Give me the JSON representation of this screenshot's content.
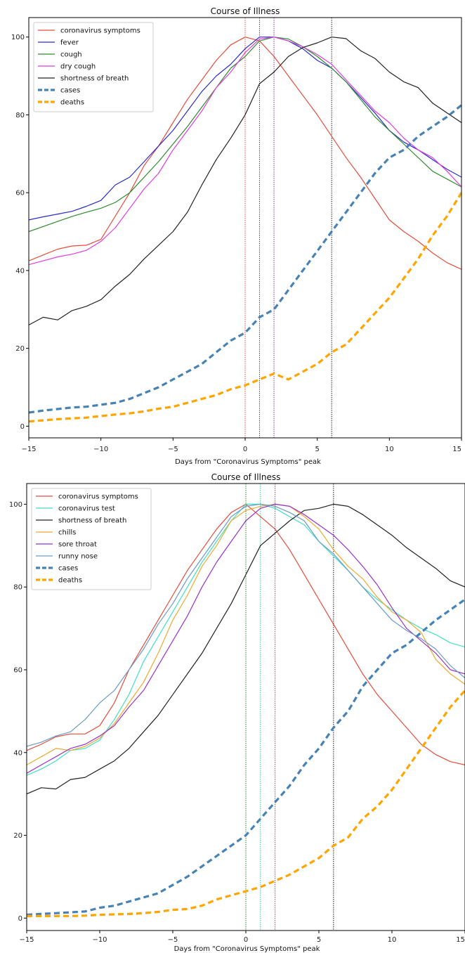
{
  "chart_data": [
    {
      "type": "line",
      "title": "Course of Illness",
      "xlabel": "Days from \"Coronavirus Symptoms\" peak",
      "ylabel": "",
      "xlim": [
        -15,
        15
      ],
      "ylim": [
        -3,
        105
      ],
      "xticks": [
        -15,
        -10,
        -5,
        0,
        5,
        10,
        15
      ],
      "xtick_labels": [
        "−15",
        "−10",
        "−5",
        "0",
        "5",
        "10",
        "15"
      ],
      "yticks": [
        0,
        20,
        40,
        60,
        80,
        100
      ],
      "ytick_labels": [
        "0",
        "20",
        "40",
        "60",
        "80",
        "100"
      ],
      "grid": false,
      "legend_position": "top-left",
      "x": [
        -15,
        -14,
        -13,
        -12,
        -11,
        -10,
        -9,
        -8,
        -7,
        -6,
        -5,
        -4,
        -3,
        -2,
        -1,
        0,
        1,
        2,
        3,
        4,
        5,
        6,
        7,
        8,
        9,
        10,
        11,
        12,
        13,
        14,
        15
      ],
      "vlines": [
        {
          "x": 0,
          "color": "#e74c3c"
        },
        {
          "x": 1,
          "color": "#3b3bd6"
        },
        {
          "x": 2,
          "color": "#8a3aa8"
        },
        {
          "x": 6,
          "color": "#222222"
        }
      ],
      "series": [
        {
          "name": "coronavirus symptoms",
          "color": "#e74c3c",
          "width": 1.2,
          "dash": "",
          "values": [
            42.5,
            44,
            45.5,
            46.3,
            46.5,
            48,
            54,
            60,
            67,
            72,
            78,
            84,
            89,
            94,
            98,
            100,
            99,
            95,
            90,
            85,
            80,
            74.5,
            69,
            64,
            58.5,
            53,
            50,
            47.5,
            44.5,
            42,
            40.3
          ]
        },
        {
          "name": "fever",
          "color": "#2b2bcc",
          "width": 1.2,
          "dash": "",
          "values": [
            53,
            53.8,
            54.5,
            55.2,
            56.5,
            58,
            62,
            64,
            68,
            72,
            76,
            81,
            86,
            90,
            93,
            97,
            100,
            100,
            99,
            97,
            94,
            92,
            88.5,
            84.5,
            80.5,
            76,
            73,
            71,
            68.5,
            66,
            64
          ]
        },
        {
          "name": "cough",
          "color": "#2e8b2e",
          "width": 1.2,
          "dash": "",
          "values": [
            50,
            51.3,
            52.6,
            53.9,
            55,
            56,
            57.5,
            60,
            64,
            68,
            72.5,
            77,
            82,
            87,
            92,
            95,
            99,
            100,
            99.5,
            97.5,
            95,
            92,
            88.5,
            84,
            79.5,
            76,
            72.5,
            69,
            65.5,
            63.5,
            61.5
          ]
        },
        {
          "name": "dry cough",
          "color": "#e23be0",
          "width": 1.2,
          "dash": "",
          "values": [
            41.5,
            42.5,
            43.5,
            44.2,
            45.2,
            47.5,
            51,
            56,
            61,
            65,
            71,
            76,
            81,
            87,
            91,
            96,
            99.5,
            100,
            99,
            97.5,
            95.5,
            93,
            89,
            85,
            81,
            78,
            74,
            71,
            69,
            65.5,
            61.5
          ]
        },
        {
          "name": "shortness of breath",
          "color": "#222222",
          "width": 1.2,
          "dash": "",
          "values": [
            26,
            28,
            27.3,
            29.7,
            30.8,
            32.5,
            36,
            39,
            43,
            46.5,
            50,
            55,
            62,
            68.5,
            74,
            80,
            88,
            91,
            95,
            97.3,
            98.5,
            100,
            99.6,
            96.5,
            94.5,
            91,
            88.5,
            87,
            83,
            80.5,
            78
          ]
        },
        {
          "name": "cases",
          "color": "#4682b4",
          "width": 3.2,
          "dash": "8,5",
          "values": [
            3.5,
            4,
            4.4,
            4.8,
            5,
            5.5,
            6,
            7,
            8.5,
            10,
            12,
            14,
            16,
            19,
            22,
            24,
            28,
            30,
            35,
            40,
            45,
            50,
            55,
            60,
            65,
            69,
            71,
            74.5,
            77,
            79.5,
            82.5
          ]
        },
        {
          "name": "deaths",
          "color": "#ffa500",
          "width": 3.2,
          "dash": "8,5",
          "values": [
            1.2,
            1.5,
            1.8,
            2,
            2.2,
            2.6,
            3,
            3.3,
            3.8,
            4.5,
            5,
            6,
            7,
            8,
            9.5,
            10.5,
            12,
            13.5,
            12,
            14,
            16,
            19,
            21,
            25,
            29,
            33,
            38,
            43,
            49,
            54,
            60
          ]
        }
      ]
    },
    {
      "type": "line",
      "title": "Course of Illness",
      "xlabel": "Days from \"Coronavirus Symptoms\" peak",
      "ylabel": "",
      "xlim": [
        -15,
        15
      ],
      "ylim": [
        -3,
        105
      ],
      "xticks": [
        -15,
        -10,
        -5,
        0,
        5,
        10,
        15
      ],
      "xtick_labels": [
        "−15",
        "−10",
        "−5",
        "0",
        "5",
        "10",
        "15"
      ],
      "yticks": [
        0,
        20,
        40,
        60,
        80,
        100
      ],
      "ytick_labels": [
        "0",
        "20",
        "40",
        "60",
        "80",
        "100"
      ],
      "grid": false,
      "legend_position": "top-left",
      "x": [
        -15,
        -14,
        -13,
        -12,
        -11,
        -10,
        -9,
        -8,
        -7,
        -6,
        -5,
        -4,
        -3,
        -2,
        -1,
        0,
        1,
        2,
        3,
        4,
        5,
        6,
        7,
        8,
        9,
        10,
        11,
        12,
        13,
        14,
        15
      ],
      "vlines": [
        {
          "x": 0,
          "color": "#2e8b2e"
        },
        {
          "x": 1,
          "color": "#40c4a8"
        },
        {
          "x": 2,
          "color": "#8a3aa8"
        },
        {
          "x": 2,
          "color": "#e74c3c"
        },
        {
          "x": 6,
          "color": "#222222"
        }
      ],
      "series": [
        {
          "name": "coronavirus symptoms",
          "color": "#e74c3c",
          "width": 1.2,
          "dash": "",
          "values": [
            40.5,
            42,
            43.8,
            44.5,
            44.5,
            46.5,
            52,
            60,
            66,
            72,
            78,
            84,
            89,
            94,
            98,
            100,
            97,
            94,
            89,
            83,
            77,
            71,
            65,
            59,
            54,
            50,
            46,
            42,
            39.5,
            37.8,
            37
          ]
        },
        {
          "name": "coronavirus test",
          "color": "#40e0c8",
          "width": 1.2,
          "dash": "",
          "values": [
            34.5,
            36,
            38,
            40.5,
            41,
            43,
            48,
            54,
            62,
            68,
            74,
            80,
            86,
            91,
            96,
            100,
            100,
            99,
            97,
            95,
            91,
            87.5,
            84,
            80,
            77,
            74.5,
            72,
            70,
            68.5,
            66.5,
            65.5
          ]
        },
        {
          "name": "shortness of breath",
          "color": "#222222",
          "width": 1.2,
          "dash": "",
          "values": [
            30,
            31.5,
            31.2,
            33.5,
            34,
            36,
            38,
            41,
            45,
            49,
            54,
            59,
            64,
            70,
            76,
            83,
            90,
            93,
            96,
            98.5,
            99,
            100,
            99.5,
            97.5,
            95,
            92.5,
            89.5,
            87,
            84.5,
            81.5,
            80
          ]
        },
        {
          "name": "chills",
          "color": "#f0a830",
          "width": 1.2,
          "dash": "",
          "values": [
            37,
            39,
            41,
            40.5,
            41.5,
            43.5,
            47,
            52,
            57,
            64,
            72,
            78,
            85,
            90,
            96,
            98.5,
            99.5,
            100,
            99.5,
            97,
            94,
            89,
            85,
            82,
            77.5,
            74,
            72,
            69,
            62.5,
            59,
            56.5
          ]
        },
        {
          "name": "sore throat",
          "color": "#9932cc",
          "width": 1.2,
          "dash": "",
          "values": [
            35,
            37,
            39,
            41,
            42,
            44,
            46.5,
            51,
            55,
            61,
            67,
            73,
            80,
            86,
            91,
            96,
            99,
            100,
            99.5,
            97.5,
            95,
            92.5,
            89,
            85,
            80.5,
            75,
            70,
            67,
            64,
            60,
            59
          ]
        },
        {
          "name": "runny nose",
          "color": "#6b9bc8",
          "width": 1.2,
          "dash": "",
          "values": [
            41.5,
            42.5,
            44,
            45,
            48,
            52,
            55,
            60,
            65,
            71,
            76,
            82,
            87,
            92,
            97,
            99.5,
            100,
            99.5,
            98,
            96,
            91,
            88,
            84,
            80,
            76,
            72,
            69.5,
            67.5,
            65,
            61,
            58
          ]
        },
        {
          "name": "cases",
          "color": "#4682b4",
          "width": 3.2,
          "dash": "8,5",
          "values": [
            0.8,
            1,
            1.2,
            1.4,
            1.6,
            2.5,
            3,
            4,
            5,
            6,
            8,
            10,
            12.5,
            15,
            17.5,
            20,
            24,
            28,
            32,
            37,
            41,
            46,
            50,
            56,
            60,
            64,
            66,
            69,
            72,
            74.5,
            77
          ]
        },
        {
          "name": "deaths",
          "color": "#ffa500",
          "width": 3.2,
          "dash": "8,5",
          "values": [
            0.5,
            0.5,
            0.5,
            0.5,
            0.6,
            0.8,
            0.9,
            1,
            1.2,
            1.5,
            2,
            2.2,
            3,
            4.5,
            5.5,
            6.5,
            7.5,
            9,
            10.5,
            12.5,
            14.5,
            17.5,
            19.5,
            24,
            27,
            31,
            36,
            41,
            46,
            51,
            55
          ]
        }
      ]
    }
  ]
}
